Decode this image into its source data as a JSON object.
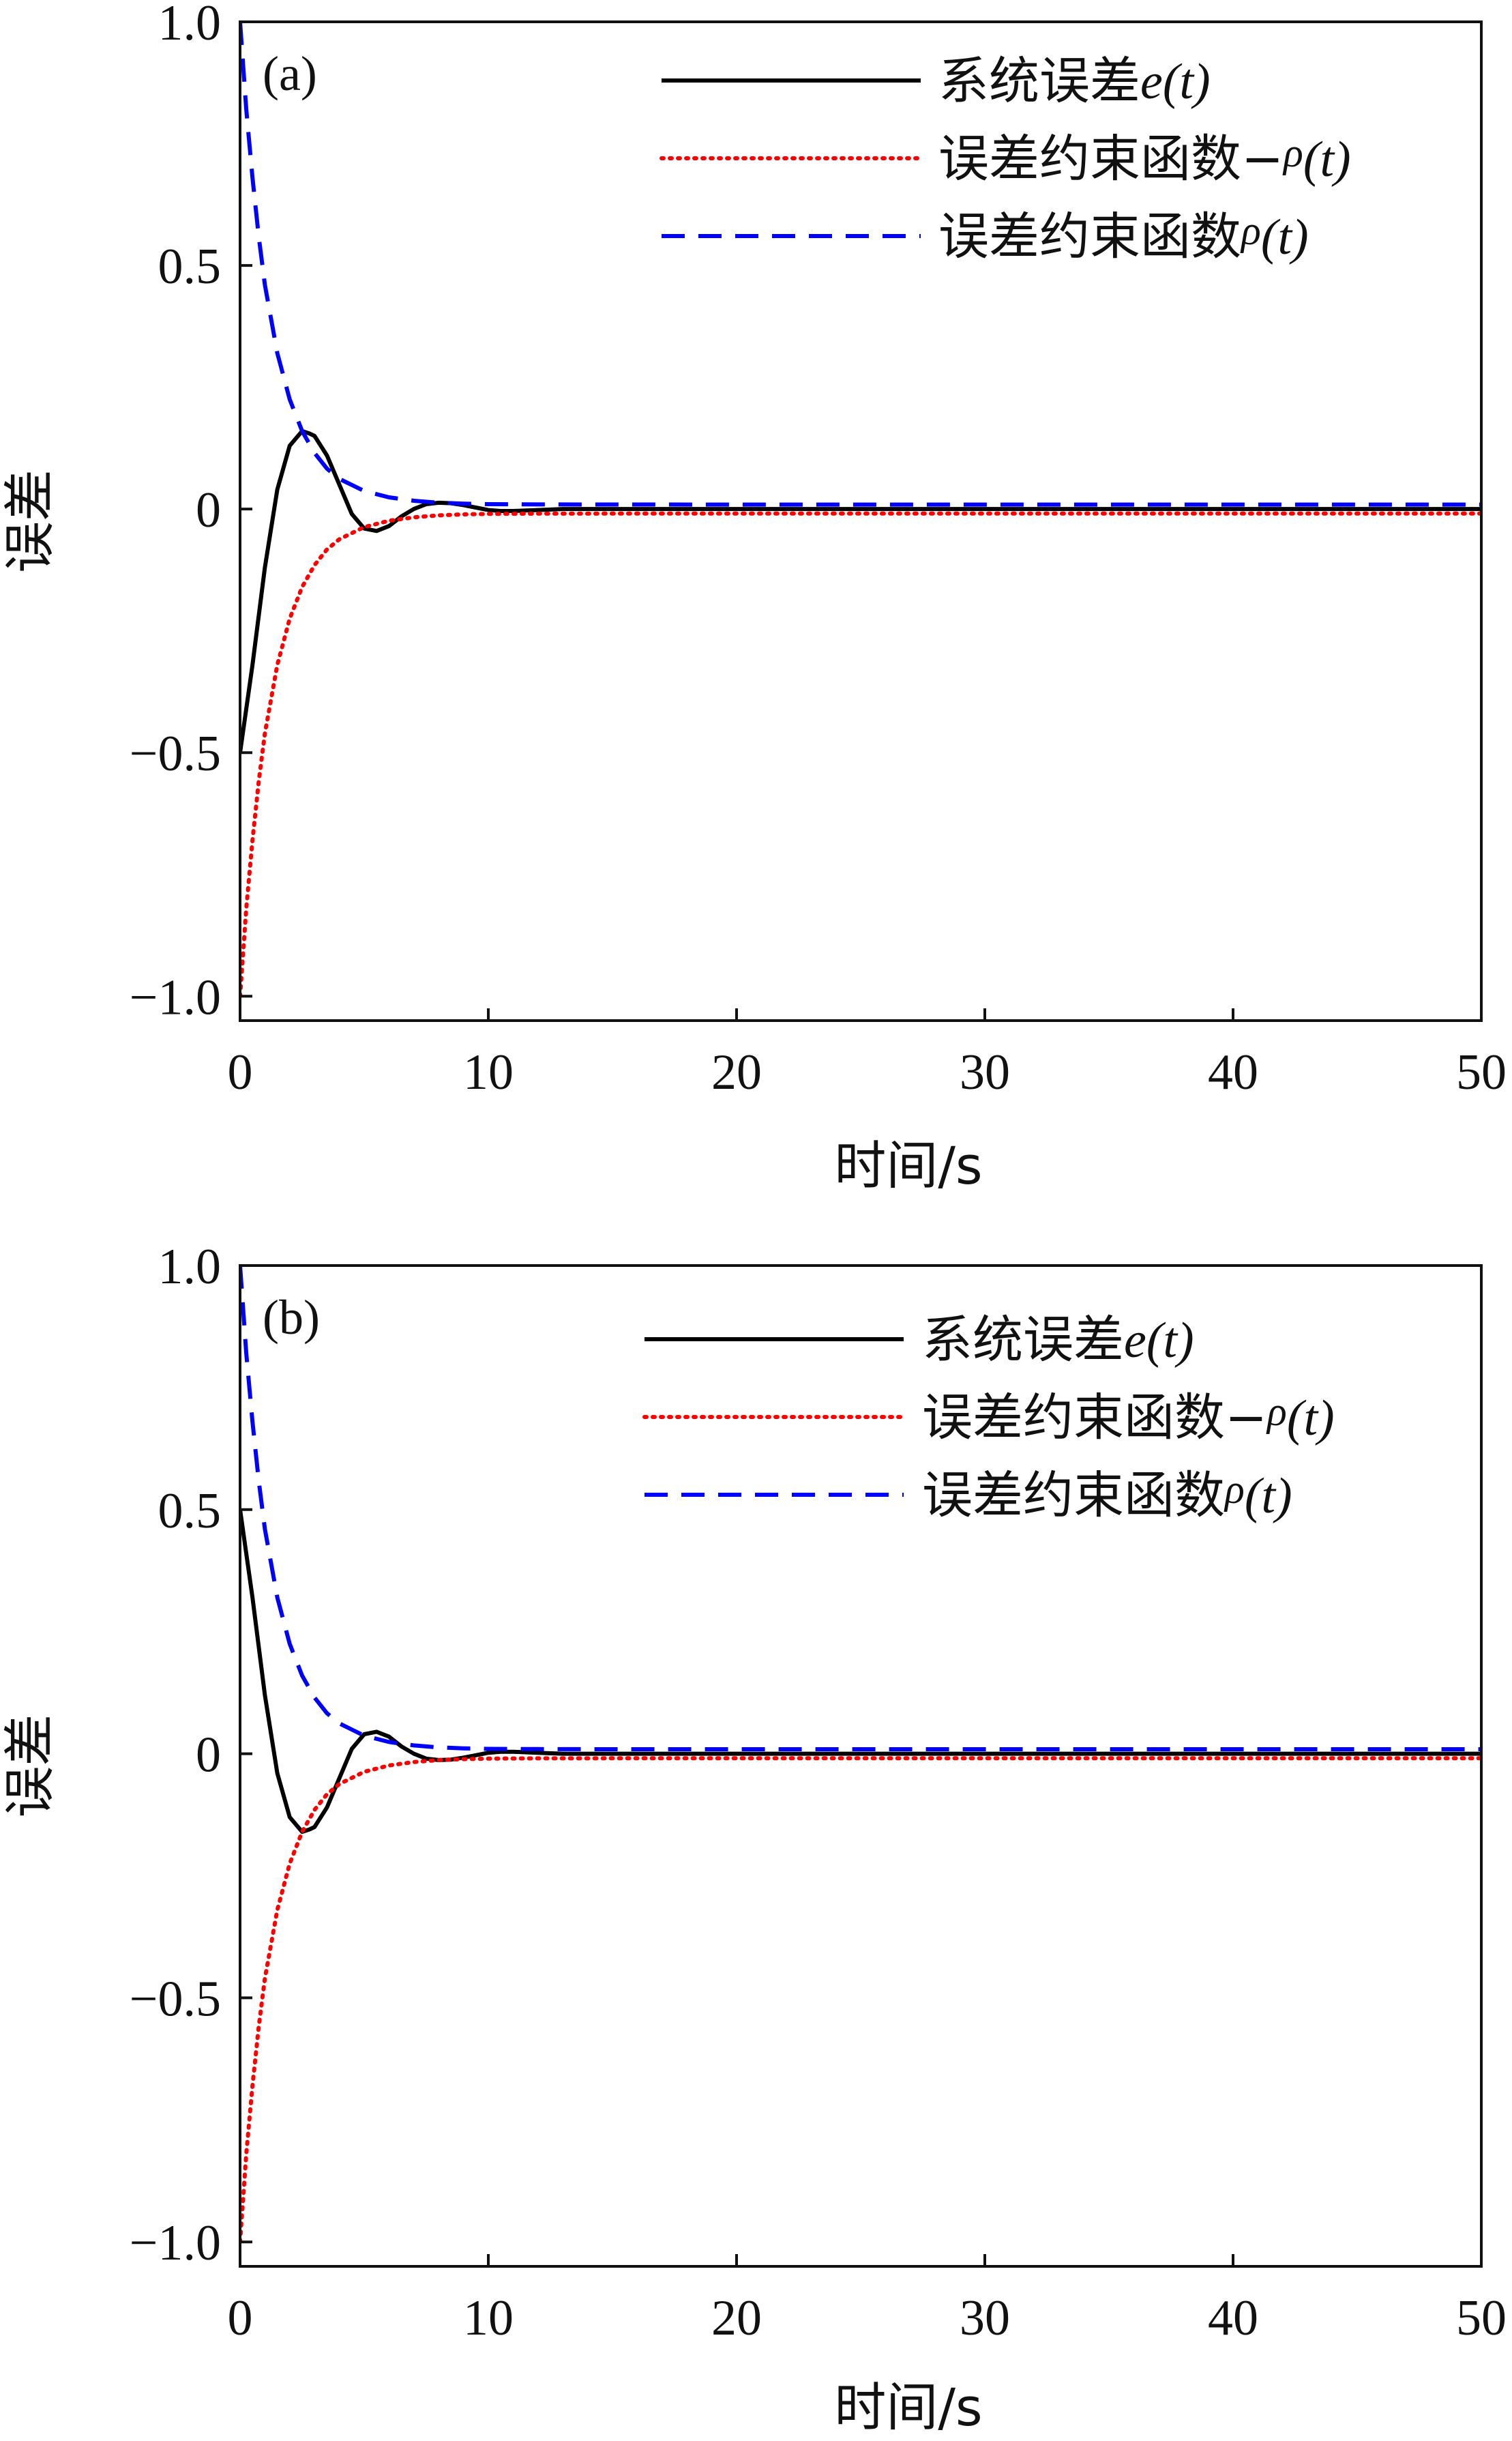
{
  "chart_data": [
    {
      "type": "line",
      "panel_label": "(a)",
      "xlabel": "时间/s",
      "ylabel": "误差",
      "xlim": [
        0,
        50
      ],
      "ylim": [
        -1.05,
        1.0
      ],
      "xticks": [
        0,
        10,
        20,
        30,
        40,
        50
      ],
      "xtick_labels": [
        "0",
        "10",
        "20",
        "30",
        "40",
        "50"
      ],
      "yticks": [
        1.0,
        0.5,
        0,
        -0.5,
        -1.0
      ],
      "ytick_labels": [
        "1.0",
        "0.5",
        "0",
        "−0.5",
        "−1.0"
      ],
      "grid": false,
      "legend_position": "top-right",
      "series": [
        {
          "name_text": "系统误差",
          "name_math": "e",
          "name_arg": "(t)",
          "color": "#000000",
          "style": "solid",
          "x": [
            0,
            0.5,
            1.0,
            1.5,
            2.0,
            2.5,
            2.8,
            3.0,
            3.5,
            4.0,
            4.5,
            5.0,
            5.5,
            6.0,
            6.5,
            7.0,
            7.5,
            8.0,
            8.5,
            9.0,
            9.5,
            10.0,
            10.5,
            11.0,
            12.0,
            13.0,
            15.0,
            20.0,
            30.0,
            40.0,
            50.0
          ],
          "y": [
            -0.5,
            -0.32,
            -0.12,
            0.04,
            0.13,
            0.16,
            0.155,
            0.15,
            0.11,
            0.05,
            -0.01,
            -0.04,
            -0.045,
            -0.035,
            -0.015,
            0.0,
            0.01,
            0.013,
            0.012,
            0.008,
            0.003,
            -0.002,
            -0.004,
            -0.004,
            -0.002,
            0.0,
            0.0,
            0.0,
            0.0,
            0.0,
            0.0
          ]
        },
        {
          "name_text": "误差约束函数−",
          "name_math": "ρ",
          "name_arg": "(t)",
          "color": "#ff0000",
          "style": "dotted",
          "x": [
            0,
            0.25,
            0.5,
            0.75,
            1.0,
            1.5,
            2.0,
            2.5,
            3.0,
            3.5,
            4.0,
            5.0,
            6.0,
            7.0,
            8.0,
            9.0,
            10.0,
            12.0,
            15.0,
            20.0,
            30.0,
            40.0,
            50.0
          ],
          "y": [
            -1.0,
            -0.82,
            -0.68,
            -0.56,
            -0.46,
            -0.32,
            -0.225,
            -0.16,
            -0.115,
            -0.083,
            -0.062,
            -0.037,
            -0.024,
            -0.017,
            -0.013,
            -0.011,
            -0.01,
            -0.0095,
            -0.0093,
            -0.0092,
            -0.0092,
            -0.0092,
            -0.0092
          ]
        },
        {
          "name_text": "误差约束函数",
          "name_math": "ρ",
          "name_arg": "(t)",
          "color": "#0000ff",
          "style": "dashed",
          "x": [
            0,
            0.25,
            0.5,
            0.75,
            1.0,
            1.5,
            2.0,
            2.5,
            3.0,
            3.5,
            4.0,
            5.0,
            6.0,
            7.0,
            8.0,
            9.0,
            10.0,
            12.0,
            15.0,
            20.0,
            30.0,
            40.0,
            50.0
          ],
          "y": [
            1.0,
            0.82,
            0.68,
            0.56,
            0.46,
            0.32,
            0.225,
            0.16,
            0.115,
            0.083,
            0.062,
            0.037,
            0.024,
            0.017,
            0.013,
            0.011,
            0.01,
            0.0095,
            0.0093,
            0.0092,
            0.0092,
            0.0092,
            0.0092
          ]
        }
      ]
    },
    {
      "type": "line",
      "panel_label": "(b)",
      "xlabel": "时间/s",
      "ylabel": "误差",
      "xlim": [
        0,
        50
      ],
      "ylim": [
        -1.05,
        1.0
      ],
      "xticks": [
        0,
        10,
        20,
        30,
        40,
        50
      ],
      "xtick_labels": [
        "0",
        "10",
        "20",
        "30",
        "40",
        "50"
      ],
      "yticks": [
        1.0,
        0.5,
        0,
        -0.5,
        -1.0
      ],
      "ytick_labels": [
        "1.0",
        "0.5",
        "0",
        "−0.5",
        "−1.0"
      ],
      "grid": false,
      "legend_position": "top-right",
      "series": [
        {
          "name_text": "系统误差",
          "name_math": "e",
          "name_arg": "(t)",
          "color": "#000000",
          "style": "solid",
          "x": [
            0,
            0.5,
            1.0,
            1.5,
            2.0,
            2.5,
            2.8,
            3.0,
            3.5,
            4.0,
            4.5,
            5.0,
            5.5,
            6.0,
            6.5,
            7.0,
            7.5,
            8.0,
            8.5,
            9.0,
            9.5,
            10.0,
            10.5,
            11.0,
            12.0,
            13.0,
            15.0,
            20.0,
            30.0,
            40.0,
            50.0
          ],
          "y": [
            0.5,
            0.32,
            0.12,
            -0.04,
            -0.13,
            -0.16,
            -0.155,
            -0.15,
            -0.11,
            -0.05,
            0.01,
            0.04,
            0.045,
            0.035,
            0.015,
            0.0,
            -0.01,
            -0.013,
            -0.012,
            -0.008,
            -0.003,
            0.002,
            0.004,
            0.004,
            0.002,
            0.0,
            0.0,
            0.0,
            0.0,
            0.0,
            0.0
          ]
        },
        {
          "name_text": "误差约束函数−",
          "name_math": "ρ",
          "name_arg": "(t)",
          "color": "#ff0000",
          "style": "dotted",
          "x": [
            0,
            0.25,
            0.5,
            0.75,
            1.0,
            1.5,
            2.0,
            2.5,
            3.0,
            3.5,
            4.0,
            5.0,
            6.0,
            7.0,
            8.0,
            9.0,
            10.0,
            12.0,
            15.0,
            20.0,
            30.0,
            40.0,
            50.0
          ],
          "y": [
            -1.0,
            -0.82,
            -0.68,
            -0.56,
            -0.46,
            -0.32,
            -0.225,
            -0.16,
            -0.115,
            -0.083,
            -0.062,
            -0.037,
            -0.024,
            -0.017,
            -0.013,
            -0.011,
            -0.01,
            -0.0095,
            -0.0093,
            -0.0092,
            -0.0092,
            -0.0092,
            -0.0092
          ]
        },
        {
          "name_text": "误差约束函数",
          "name_math": "ρ",
          "name_arg": "(t)",
          "color": "#0000ff",
          "style": "dashed",
          "x": [
            0,
            0.25,
            0.5,
            0.75,
            1.0,
            1.5,
            2.0,
            2.5,
            3.0,
            3.5,
            4.0,
            5.0,
            6.0,
            7.0,
            8.0,
            9.0,
            10.0,
            12.0,
            15.0,
            20.0,
            30.0,
            40.0,
            50.0
          ],
          "y": [
            1.0,
            0.82,
            0.68,
            0.56,
            0.46,
            0.32,
            0.225,
            0.16,
            0.115,
            0.083,
            0.062,
            0.037,
            0.024,
            0.017,
            0.013,
            0.011,
            0.01,
            0.0095,
            0.0093,
            0.0092,
            0.0092,
            0.0092,
            0.0092
          ]
        }
      ]
    }
  ]
}
